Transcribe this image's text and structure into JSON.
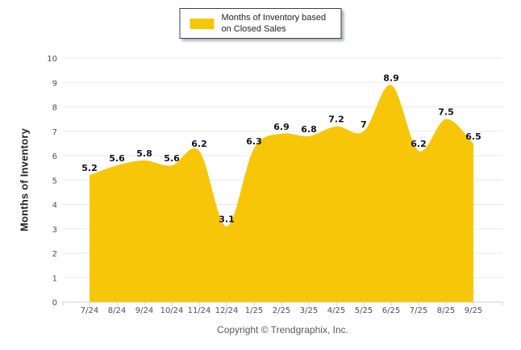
{
  "page": {
    "footer": "Copyright © Trendgraphix, Inc."
  },
  "legend": {
    "label": "Months of Inventory based on Closed Sales"
  },
  "colors": {
    "area": "#F8C608",
    "grid": "#e9e9e9",
    "axis_line": "#d4d4d4",
    "tick": "#cfcfcf",
    "tick_text": "#4c4c5e",
    "data_label": "#111122",
    "legend_border": "#2b4368"
  },
  "chart_data": {
    "type": "area",
    "title": "",
    "xlabel": "",
    "ylabel": "Months of Inventory",
    "categories": [
      "7/24",
      "8/24",
      "9/24",
      "10/24",
      "11/24",
      "12/24",
      "1/25",
      "2/25",
      "3/25",
      "4/25",
      "5/25",
      "6/25",
      "7/25",
      "8/25",
      "9/25"
    ],
    "series": [
      {
        "name": "Months of Inventory based on Closed Sales",
        "values": [
          5.2,
          5.6,
          5.8,
          5.6,
          6.2,
          3.1,
          6.3,
          6.9,
          6.8,
          7.2,
          7,
          8.9,
          6.2,
          7.5,
          6.5
        ],
        "labels": [
          "5.2",
          "5.6",
          "5.8",
          "5.6",
          "6.2",
          "3.1",
          "6.3",
          "6.9",
          "6.8",
          "7.2",
          "7",
          "8.9",
          "6.2",
          "7.5",
          "6.5"
        ]
      }
    ],
    "ylim": [
      0,
      10
    ],
    "yticks": [
      0,
      1,
      2,
      3,
      4,
      5,
      6,
      7,
      8,
      9,
      10
    ],
    "grid": true,
    "smooth": true,
    "legend_position": "top-center"
  }
}
